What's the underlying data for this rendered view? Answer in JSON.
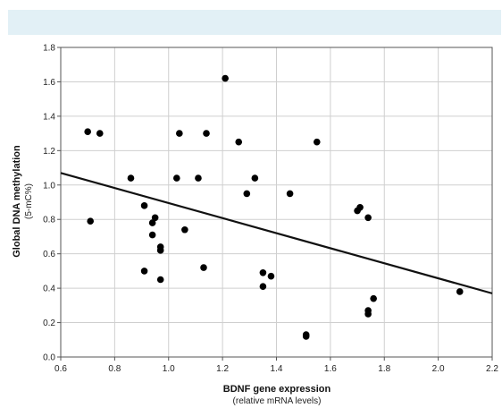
{
  "chart_data": {
    "type": "scatter",
    "xlabel": "BDNF gene expression",
    "xlabel_sub": "(relative mRNA levels)",
    "ylabel": "Global DNA methylation",
    "ylabel_sub": "(5-mC%)",
    "xlim": [
      0.6,
      2.2
    ],
    "ylim": [
      0.0,
      1.8
    ],
    "x_ticks": [
      "0.6",
      "0.8",
      "1.0",
      "1.2",
      "1.4",
      "1.6",
      "1.8",
      "2.0",
      "2.2"
    ],
    "y_ticks": [
      "0.0",
      "0.2",
      "0.4",
      "0.6",
      "0.8",
      "1.0",
      "1.2",
      "1.4",
      "1.6",
      "1.8"
    ],
    "grid": true,
    "point_color": "#000000",
    "trend_line": {
      "x": [
        0.6,
        2.2
      ],
      "y": [
        1.07,
        0.37
      ]
    },
    "points": [
      {
        "x": 0.7,
        "y": 1.31
      },
      {
        "x": 0.745,
        "y": 1.3
      },
      {
        "x": 0.71,
        "y": 0.79
      },
      {
        "x": 0.86,
        "y": 1.04
      },
      {
        "x": 0.91,
        "y": 0.88
      },
      {
        "x": 0.91,
        "y": 0.5
      },
      {
        "x": 0.94,
        "y": 0.78
      },
      {
        "x": 0.95,
        "y": 0.81
      },
      {
        "x": 0.94,
        "y": 0.71
      },
      {
        "x": 0.97,
        "y": 0.64
      },
      {
        "x": 0.97,
        "y": 0.62
      },
      {
        "x": 0.97,
        "y": 0.45
      },
      {
        "x": 1.03,
        "y": 1.04
      },
      {
        "x": 1.04,
        "y": 1.3
      },
      {
        "x": 1.06,
        "y": 0.74
      },
      {
        "x": 1.11,
        "y": 1.04
      },
      {
        "x": 1.13,
        "y": 0.52
      },
      {
        "x": 1.14,
        "y": 1.3
      },
      {
        "x": 1.21,
        "y": 1.62
      },
      {
        "x": 1.26,
        "y": 1.25
      },
      {
        "x": 1.29,
        "y": 0.95
      },
      {
        "x": 1.32,
        "y": 1.04
      },
      {
        "x": 1.35,
        "y": 0.49
      },
      {
        "x": 1.35,
        "y": 0.41
      },
      {
        "x": 1.38,
        "y": 0.47
      },
      {
        "x": 1.45,
        "y": 0.95
      },
      {
        "x": 1.51,
        "y": 0.12
      },
      {
        "x": 1.51,
        "y": 0.13
      },
      {
        "x": 1.55,
        "y": 1.25
      },
      {
        "x": 1.7,
        "y": 0.85
      },
      {
        "x": 1.71,
        "y": 0.87
      },
      {
        "x": 1.74,
        "y": 0.81
      },
      {
        "x": 1.74,
        "y": 0.27
      },
      {
        "x": 1.74,
        "y": 0.25
      },
      {
        "x": 1.76,
        "y": 0.34
      },
      {
        "x": 2.08,
        "y": 0.38
      }
    ]
  }
}
